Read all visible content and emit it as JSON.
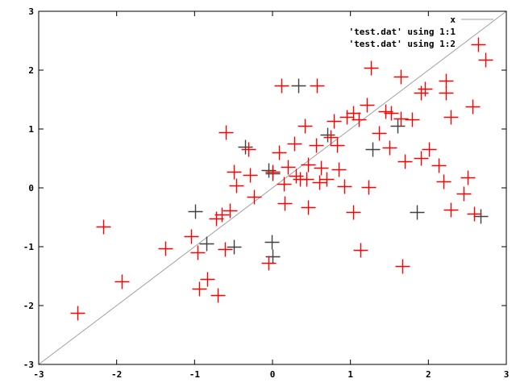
{
  "chart_data": {
    "type": "scatter",
    "title": "",
    "xlabel": "",
    "ylabel": "",
    "xlim": [
      -3,
      3
    ],
    "ylim": [
      -3,
      3
    ],
    "grid": false,
    "legend_position": "top-right",
    "x_ticks": [
      "-3",
      "-2",
      "-1",
      "0",
      "1",
      "2",
      "3"
    ],
    "y_ticks": [
      "-3",
      "-2",
      "-1",
      "0",
      "1",
      "2",
      "3"
    ],
    "line": {
      "name": "x",
      "color": "#a0a0a0",
      "from": [
        -3,
        -3
      ],
      "to": [
        3,
        3
      ]
    },
    "series": [
      {
        "name": "'test.dat' using 1:1",
        "color": "#404040",
        "points": [
          [
            -0.99,
            -0.4
          ],
          [
            -0.85,
            -0.95
          ],
          [
            -0.5,
            -1.0
          ],
          [
            -0.01,
            -0.92
          ],
          [
            0.0,
            -1.17
          ],
          [
            -0.05,
            0.3
          ],
          [
            0.0,
            0.25
          ],
          [
            0.33,
            1.74
          ],
          [
            1.28,
            0.66
          ],
          [
            1.85,
            -0.41
          ],
          [
            2.67,
            -0.48
          ],
          [
            1.6,
            1.05
          ],
          [
            0.7,
            0.9
          ],
          [
            -0.35,
            0.7
          ]
        ]
      },
      {
        "name": "'test.dat' using 1:2",
        "color": "#ff0000",
        "points": [
          [
            -2.5,
            -2.12
          ],
          [
            -2.17,
            -0.66
          ],
          [
            -1.93,
            -1.59
          ],
          [
            -1.38,
            -1.03
          ],
          [
            -1.04,
            -0.82
          ],
          [
            -0.96,
            -1.1
          ],
          [
            -0.94,
            -1.71
          ],
          [
            -0.84,
            -1.55
          ],
          [
            -0.7,
            -1.82
          ],
          [
            -0.61,
            -1.04
          ],
          [
            -0.72,
            -0.52
          ],
          [
            -0.65,
            -0.45
          ],
          [
            -0.55,
            -0.38
          ],
          [
            -0.6,
            0.95
          ],
          [
            -0.5,
            0.27
          ],
          [
            -0.47,
            0.04
          ],
          [
            -0.31,
            0.66
          ],
          [
            -0.24,
            -0.15
          ],
          [
            -0.29,
            0.22
          ],
          [
            -0.05,
            -1.27
          ],
          [
            0.0,
            0.27
          ],
          [
            0.11,
            1.74
          ],
          [
            0.14,
            0.07
          ],
          [
            0.16,
            -0.26
          ],
          [
            0.08,
            0.6
          ],
          [
            0.2,
            0.35
          ],
          [
            0.57,
            1.74
          ],
          [
            0.28,
            0.75
          ],
          [
            0.41,
            1.05
          ],
          [
            0.35,
            0.15
          ],
          [
            0.43,
            0.15
          ],
          [
            0.46,
            -0.33
          ],
          [
            0.56,
            0.73
          ],
          [
            0.62,
            0.34
          ],
          [
            0.74,
            0.86
          ],
          [
            0.79,
            1.14
          ],
          [
            0.83,
            0.73
          ],
          [
            0.69,
            0.15
          ],
          [
            0.85,
            0.32
          ],
          [
            0.92,
            0.03
          ],
          [
            1.03,
            1.27
          ],
          [
            1.11,
            1.16
          ],
          [
            1.03,
            -0.41
          ],
          [
            1.13,
            -1.05
          ],
          [
            1.23,
            0.01
          ],
          [
            1.26,
            2.04
          ],
          [
            1.21,
            1.41
          ],
          [
            1.37,
            0.93
          ],
          [
            1.5,
            0.68
          ],
          [
            1.52,
            1.27
          ],
          [
            1.64,
            1.89
          ],
          [
            1.64,
            1.18
          ],
          [
            1.7,
            0.45
          ],
          [
            1.67,
            -1.33
          ],
          [
            1.79,
            1.16
          ],
          [
            1.9,
            1.62
          ],
          [
            1.96,
            1.68
          ],
          [
            1.9,
            0.51
          ],
          [
            2.01,
            0.66
          ],
          [
            2.22,
            1.82
          ],
          [
            2.22,
            1.62
          ],
          [
            2.19,
            0.11
          ],
          [
            2.29,
            1.21
          ],
          [
            2.13,
            0.38
          ],
          [
            2.29,
            -0.37
          ],
          [
            2.45,
            -0.1
          ],
          [
            2.5,
            0.18
          ],
          [
            2.57,
            1.38
          ],
          [
            2.64,
            2.44
          ],
          [
            2.73,
            2.18
          ],
          [
            2.59,
            -0.44
          ],
          [
            0.45,
            0.4
          ],
          [
            0.3,
            0.2
          ],
          [
            0.95,
            1.2
          ],
          [
            1.45,
            1.3
          ],
          [
            0.6,
            0.1
          ]
        ]
      }
    ]
  }
}
